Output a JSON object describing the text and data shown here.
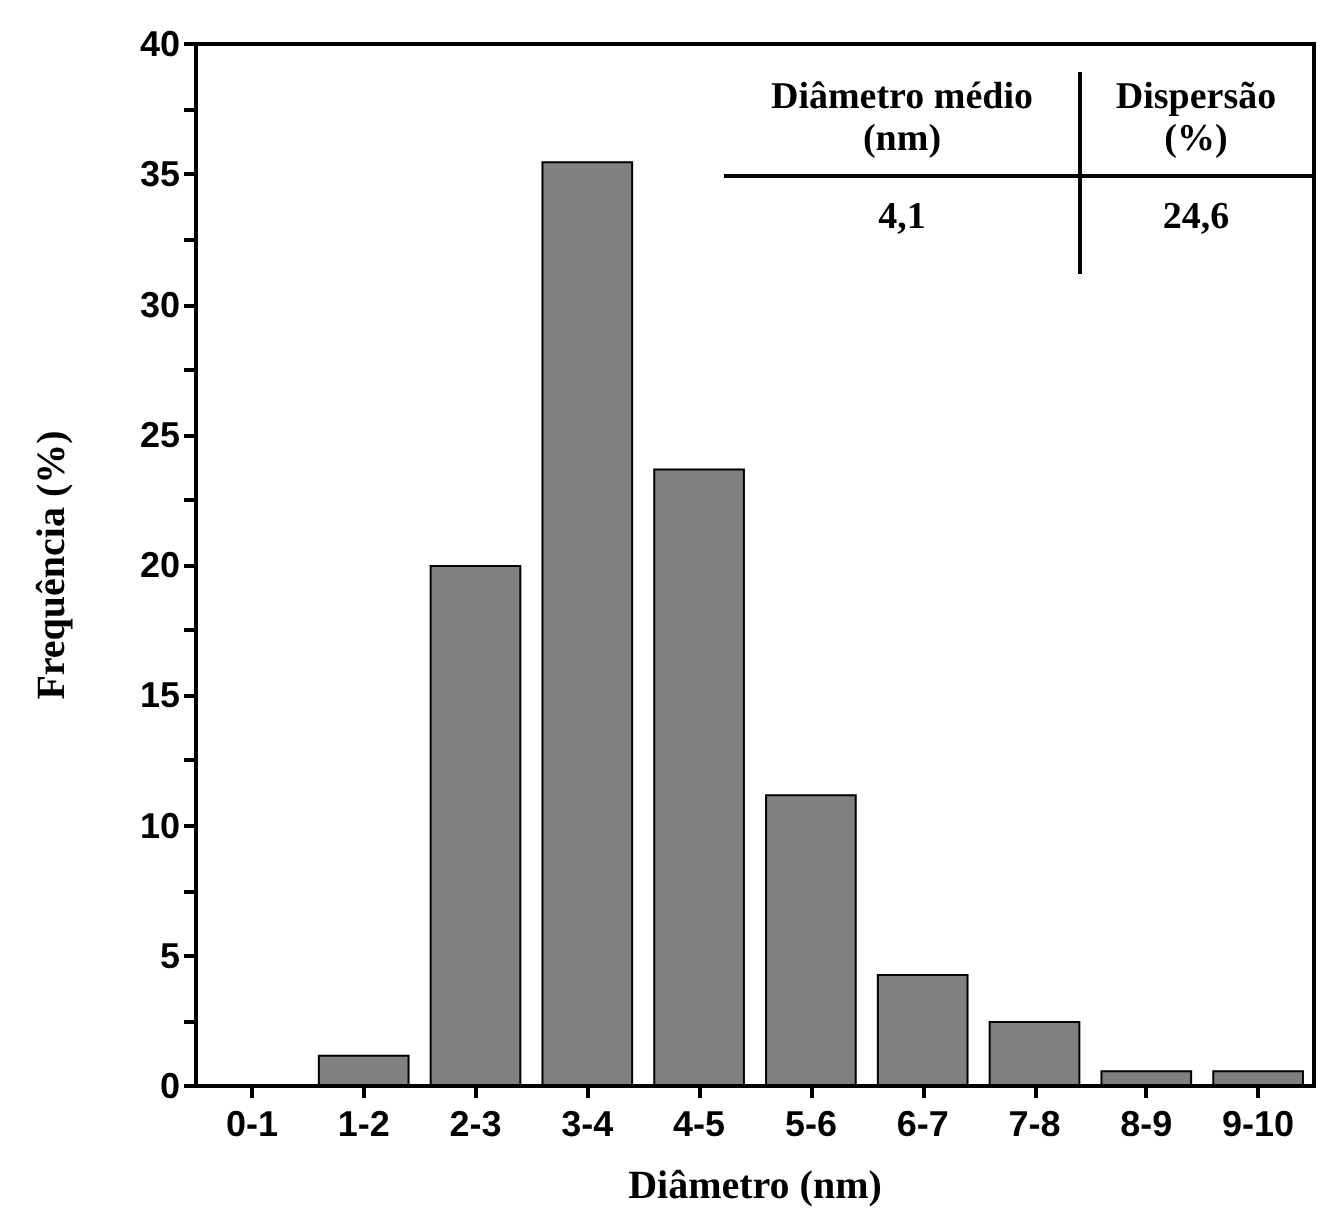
{
  "chart_data": {
    "type": "bar",
    "xlabel": "Diâmetro (nm)",
    "ylabel": "Frequência (%)",
    "categories": [
      "0-1",
      "1-2",
      "2-3",
      "3-4",
      "4-5",
      "5-6",
      "6-7",
      "7-8",
      "8-9",
      "9-10"
    ],
    "values": [
      0,
      1.2,
      20,
      35.5,
      23.7,
      11.2,
      4.3,
      2.5,
      0.6,
      0.6
    ],
    "color": "#808080",
    "ylim": [
      0,
      40
    ],
    "yticks": [
      0,
      {
        "value": 2.5,
        "label": null
      },
      5,
      {
        "value": 7.5,
        "label": null
      },
      10,
      {
        "value": 12.5,
        "label": null
      },
      15,
      {
        "value": 17.5,
        "label": null
      },
      20,
      {
        "value": 22.5,
        "label": null
      },
      25,
      {
        "value": 27.5,
        "label": null
      },
      30,
      {
        "value": 32.5,
        "label": null
      },
      35,
      {
        "value": 37.5,
        "label": null
      },
      40
    ],
    "annotations": [
      "Diâmetro médio (nm)",
      "Dispersão (%)",
      "4,1",
      "24,6"
    ],
    "grid": false
  }
}
